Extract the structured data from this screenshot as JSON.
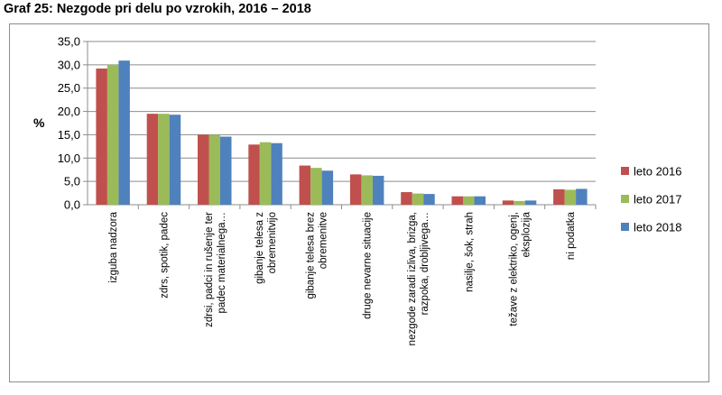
{
  "chart_data": {
    "type": "bar",
    "title": "Graf 25: Nezgode pri delu po vzrokih, 2016 – 2018",
    "xlabel": "",
    "ylabel": "%",
    "ylim": [
      0,
      35
    ],
    "ytick_step": 5,
    "ytick_labels": [
      "0,0",
      "5,0",
      "10,0",
      "15,0",
      "20,0",
      "25,0",
      "30,0",
      "35,0"
    ],
    "grid": true,
    "legend_position": "right",
    "categories": [
      [
        "izguba nadzora"
      ],
      [
        "zdrs, spotik, padec"
      ],
      [
        "zdrsi, padci in rušenje ter",
        "padec materialnega…"
      ],
      [
        "gibanje telesa z",
        "obremenitvijo"
      ],
      [
        "gibanje telesa brez",
        "obremenitve"
      ],
      [
        "druge nevarne situacije"
      ],
      [
        "nezgode zaradi izliva, brizga,",
        "razpoka, drobljivega…"
      ],
      [
        "nasilje, šok, strah"
      ],
      [
        "težave z elektriko, ogenj,",
        "eksplozija"
      ],
      [
        "ni podatka"
      ]
    ],
    "series": [
      {
        "name": "leto 2016",
        "color": "#c0504d",
        "values": [
          29.2,
          19.5,
          15.0,
          12.9,
          8.4,
          6.5,
          2.7,
          1.8,
          0.9,
          3.3
        ]
      },
      {
        "name": "leto 2017",
        "color": "#9bbb59",
        "values": [
          30.0,
          19.5,
          15.0,
          13.4,
          7.9,
          6.3,
          2.4,
          1.8,
          0.8,
          3.2
        ]
      },
      {
        "name": "leto 2018",
        "color": "#4f81bd",
        "values": [
          30.9,
          19.3,
          14.6,
          13.2,
          7.3,
          6.2,
          2.3,
          1.8,
          0.9,
          3.4
        ]
      }
    ]
  }
}
